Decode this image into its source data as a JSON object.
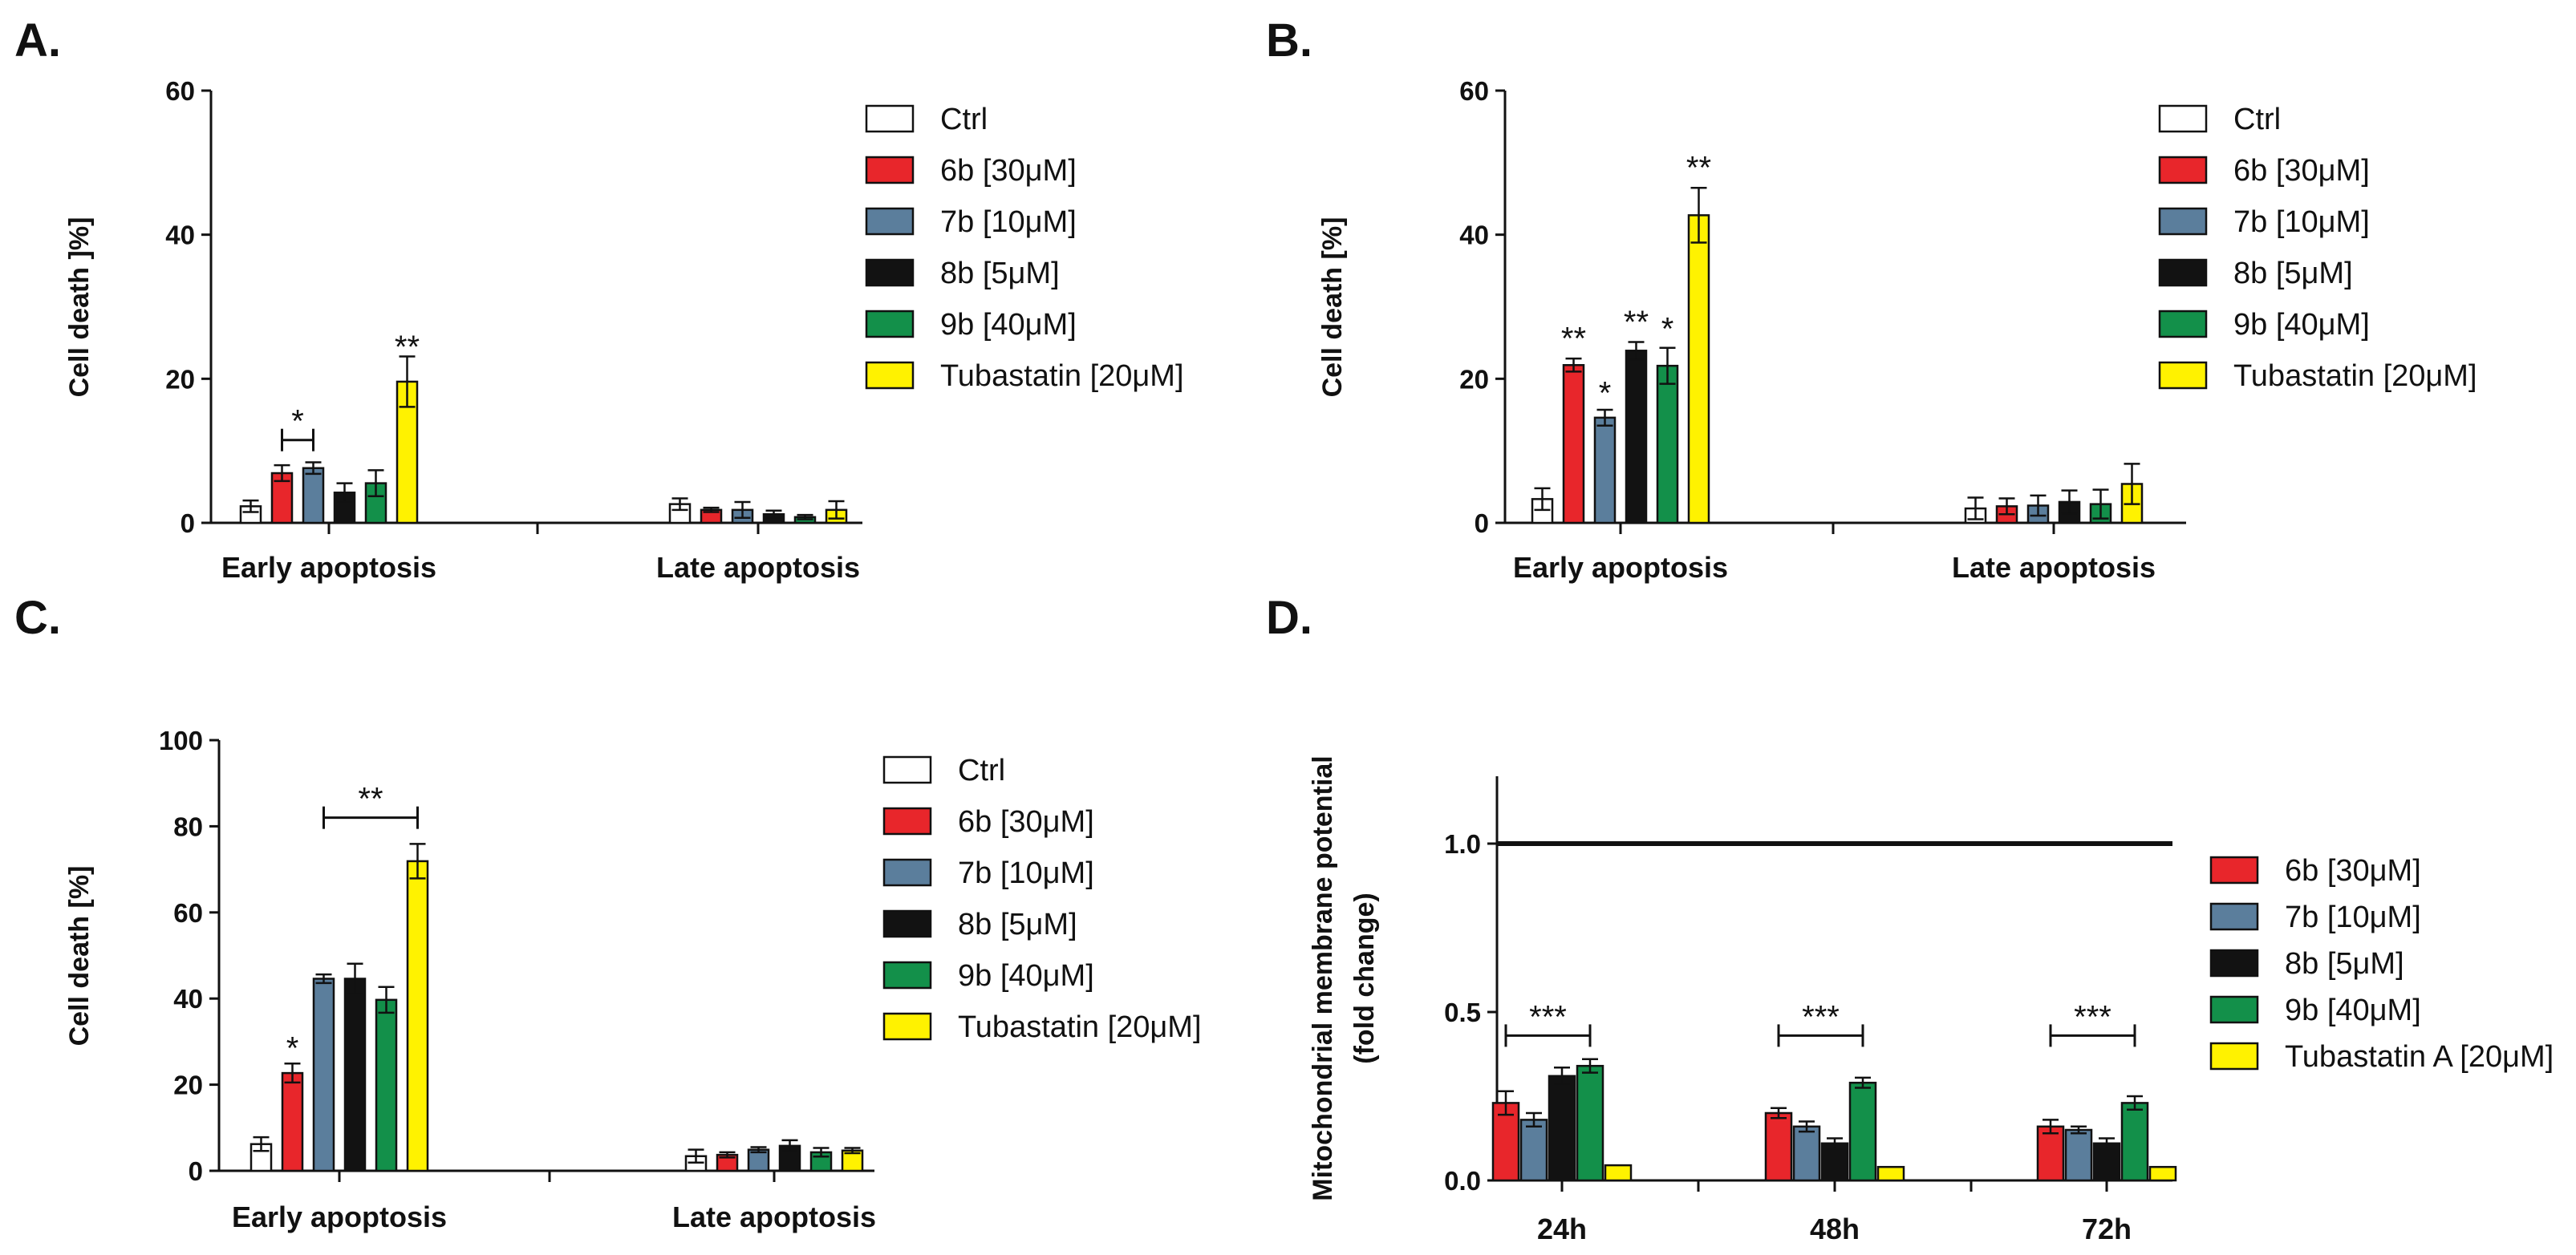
{
  "colors": {
    "Ctrl": "#ffffff",
    "6b": "#e8262b",
    "7b": "#5b7e9c",
    "8b": "#121212",
    "9b": "#13904a",
    "Tubastatin": "#fff200"
  },
  "chart_data": [
    {
      "type": "bar",
      "panel": "A.",
      "ylabel": "Cell death ]%]",
      "ylim": [
        0,
        60
      ],
      "yticks": [
        "0",
        "20",
        "40",
        "60"
      ],
      "categories": [
        "Early apoptosis",
        "Late apoptosis"
      ],
      "series": [
        {
          "name": "Ctrl",
          "key": "Ctrl",
          "values": [
            2.3,
            2.6
          ],
          "errors": [
            0.8,
            0.8
          ]
        },
        {
          "name": "6b [30μM]",
          "key": "6b",
          "values": [
            6.9,
            1.8
          ],
          "errors": [
            1.1,
            0.3
          ]
        },
        {
          "name": "7b [10μM]",
          "key": "7b",
          "values": [
            7.6,
            1.8
          ],
          "errors": [
            0.8,
            1.1
          ]
        },
        {
          "name": "8b [5μM]",
          "key": "8b",
          "values": [
            4.2,
            1.2
          ],
          "errors": [
            1.3,
            0.5
          ]
        },
        {
          "name": "9b [40μM]",
          "key": "9b",
          "values": [
            5.5,
            0.8
          ],
          "errors": [
            1.8,
            0.3
          ]
        },
        {
          "name": "Tubastatin [20μM]",
          "key": "Tubastatin",
          "values": [
            19.6,
            1.8
          ],
          "errors": [
            3.5,
            1.2
          ]
        }
      ],
      "annotations": [
        {
          "text": "*",
          "category": 0,
          "from": 1,
          "to": 2,
          "y": 11.5
        },
        {
          "text": "**",
          "category": 0,
          "series": 5,
          "y": 23.8
        }
      ]
    },
    {
      "type": "bar",
      "panel": "B.",
      "ylabel": "Cell death [%]",
      "ylim": [
        0,
        60
      ],
      "yticks": [
        "0",
        "20",
        "40",
        "60"
      ],
      "categories": [
        "Early apoptosis",
        "Late apoptosis"
      ],
      "series": [
        {
          "name": "Ctrl",
          "key": "Ctrl",
          "values": [
            3.3,
            2.0
          ],
          "errors": [
            1.5,
            1.5
          ]
        },
        {
          "name": "6b [30μM]",
          "key": "6b",
          "values": [
            21.9,
            2.3
          ],
          "errors": [
            0.9,
            1.1
          ]
        },
        {
          "name": "7b [10μM]",
          "key": "7b",
          "values": [
            14.6,
            2.4
          ],
          "errors": [
            1.1,
            1.4
          ]
        },
        {
          "name": "8b [5μM]",
          "key": "8b",
          "values": [
            23.9,
            2.9
          ],
          "errors": [
            1.2,
            1.6
          ]
        },
        {
          "name": "9b [40μM]",
          "key": "9b",
          "values": [
            21.8,
            2.6
          ],
          "errors": [
            2.5,
            2.0
          ]
        },
        {
          "name": "Tubastatin [20μM]",
          "key": "Tubastatin",
          "values": [
            42.7,
            5.4
          ],
          "errors": [
            3.8,
            2.8
          ]
        }
      ],
      "annotations": [
        {
          "text": "**",
          "category": 0,
          "series": 1,
          "y": 25.0
        },
        {
          "text": "*",
          "category": 0,
          "series": 2,
          "y": 17.4
        },
        {
          "text": "**",
          "category": 0,
          "series": 3,
          "y": 27.3
        },
        {
          "text": "*",
          "category": 0,
          "series": 4,
          "y": 26.3
        },
        {
          "text": "**",
          "category": 0,
          "series": 5,
          "y": 48.7
        }
      ]
    },
    {
      "type": "bar",
      "panel": "C.",
      "ylabel": "Cell death [%]",
      "ylim": [
        0,
        100
      ],
      "yticks": [
        "0",
        "20",
        "40",
        "60",
        "80",
        "100"
      ],
      "categories": [
        "Early apoptosis",
        "Late apoptosis"
      ],
      "series": [
        {
          "name": "Ctrl",
          "key": "Ctrl",
          "values": [
            6.2,
            3.4
          ],
          "errors": [
            1.6,
            1.5
          ]
        },
        {
          "name": "6b [30μM]",
          "key": "6b",
          "values": [
            22.7,
            3.7
          ],
          "errors": [
            2.2,
            0.6
          ]
        },
        {
          "name": "7b [10μM]",
          "key": "7b",
          "values": [
            44.6,
            4.9
          ],
          "errors": [
            1.0,
            0.6
          ]
        },
        {
          "name": "8b [5μM]",
          "key": "8b",
          "values": [
            44.6,
            5.8
          ],
          "errors": [
            3.5,
            1.3
          ]
        },
        {
          "name": "9b [40μM]",
          "key": "9b",
          "values": [
            39.7,
            4.3
          ],
          "errors": [
            3.0,
            1.0
          ]
        },
        {
          "name": "Tubastatin [20μM]",
          "key": "Tubastatin",
          "values": [
            71.9,
            4.7
          ],
          "errors": [
            4.0,
            0.6
          ]
        }
      ],
      "annotations": [
        {
          "text": "*",
          "category": 0,
          "series": 1,
          "y": 27.5
        },
        {
          "text": "**",
          "category": 0,
          "from": 2,
          "to": 5,
          "y": 82.0
        }
      ]
    },
    {
      "type": "bar",
      "panel": "D.",
      "ylabel": "Mitochondrial membrane potential",
      "ylabel2": "(fold change)",
      "ylim": [
        0,
        1.2
      ],
      "yticks": [
        "0.0",
        "0.5",
        "1.0"
      ],
      "reference_line": 1.0,
      "categories": [
        "24h",
        "48h",
        "72h"
      ],
      "series": [
        {
          "name": "6b [30μM]",
          "key": "6b",
          "values": [
            0.23,
            0.2,
            0.16
          ],
          "errors": [
            0.035,
            0.015,
            0.02
          ]
        },
        {
          "name": "7b [10μM]",
          "key": "7b",
          "values": [
            0.18,
            0.16,
            0.15
          ],
          "errors": [
            0.02,
            0.015,
            0.01
          ]
        },
        {
          "name": "8b [5μM]",
          "key": "8b",
          "values": [
            0.31,
            0.11,
            0.11
          ],
          "errors": [
            0.025,
            0.015,
            0.015
          ]
        },
        {
          "name": "9b [40μM]",
          "key": "9b",
          "values": [
            0.34,
            0.29,
            0.23
          ],
          "errors": [
            0.02,
            0.015,
            0.02
          ]
        },
        {
          "name": "Tubastatin A [20μM]",
          "key": "Tubastatin",
          "values": [
            0.045,
            0.04,
            0.04
          ],
          "errors": [
            0.0,
            0.0,
            0.0
          ]
        }
      ],
      "annotations": [
        {
          "text": "***",
          "category": 0,
          "from": 0,
          "to": 3,
          "y": 0.43
        },
        {
          "text": "***",
          "category": 1,
          "from": 0,
          "to": 3,
          "y": 0.43
        },
        {
          "text": "***",
          "category": 2,
          "from": 0,
          "to": 3,
          "y": 0.43
        }
      ]
    }
  ]
}
